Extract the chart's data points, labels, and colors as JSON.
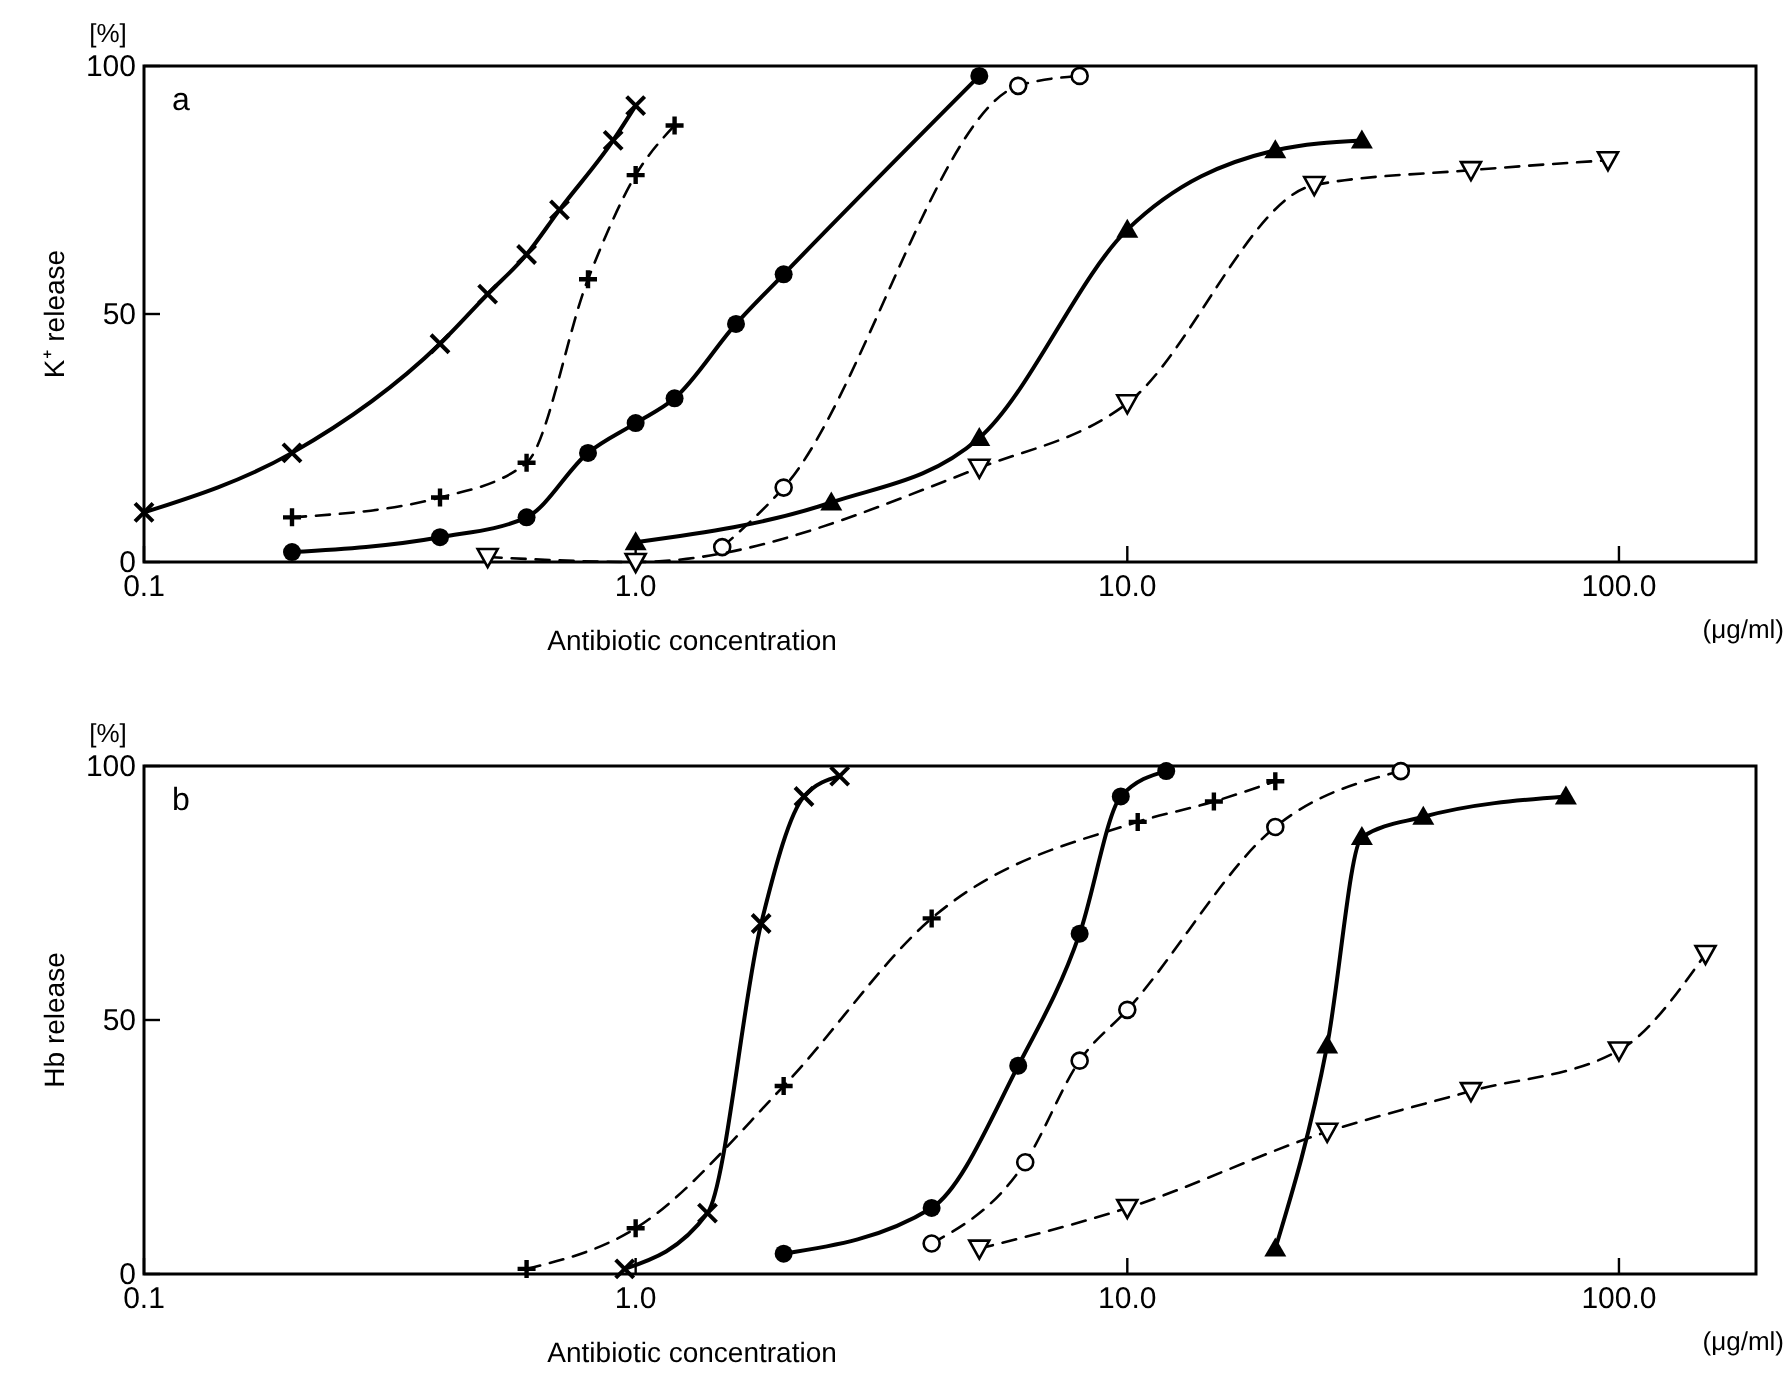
{
  "chart_data": [
    {
      "type": "line",
      "xlabel": "Antibiotic concentration",
      "ylabel": "K⁺ release",
      "annotations": [
        "a",
        "[%]",
        "(μg/ml)"
      ],
      "log": "x",
      "xlim": [
        0.1,
        190
      ],
      "xticks": [
        {
          "value": 0.1,
          "label": "0.1"
        },
        {
          "value": 1,
          "label": "1.0"
        },
        {
          "value": 10,
          "label": "10.0"
        },
        {
          "value": 100,
          "label": "100.0"
        }
      ],
      "ylim": [
        0,
        100
      ],
      "yticks": [
        0,
        50,
        100
      ],
      "grid": false,
      "series": [
        {
          "color": "#000000",
          "marker": "x",
          "line_style": "solid",
          "x": [
            0.1,
            0.2,
            0.4,
            0.5,
            0.6,
            0.7,
            0.9,
            1.0
          ],
          "values": [
            10,
            22,
            44,
            54,
            62,
            71,
            85,
            92
          ]
        },
        {
          "color": "#000000",
          "marker": "cross",
          "line_style": "dashed",
          "x": [
            0.2,
            0.4,
            0.6,
            0.8,
            1.0,
            1.2
          ],
          "values": [
            9,
            13,
            20,
            57,
            78,
            88
          ]
        },
        {
          "color": "#000000",
          "marker": "circle",
          "line_style": "solid",
          "x": [
            0.2,
            0.4,
            0.6,
            0.8,
            1.0,
            1.2,
            1.6,
            2.0,
            5.0
          ],
          "values": [
            2,
            5,
            9,
            22,
            28,
            33,
            48,
            58,
            98
          ]
        },
        {
          "color": "#000000",
          "marker": "circle-open",
          "line_style": "dashed",
          "x": [
            1.5,
            2.0,
            6.0,
            8.0
          ],
          "values": [
            3,
            15,
            96,
            98
          ]
        },
        {
          "color": "#000000",
          "marker": "triangle",
          "line_style": "solid",
          "x": [
            1.0,
            2.5,
            5.0,
            10,
            20,
            30
          ],
          "values": [
            4,
            12,
            25,
            67,
            83,
            85
          ]
        },
        {
          "color": "#000000",
          "marker": "triangle-down-open",
          "line_style": "dashed",
          "x": [
            0.5,
            1.0,
            5.0,
            10,
            24,
            50,
            95
          ],
          "values": [
            1,
            0,
            19,
            32,
            76,
            79,
            81
          ]
        }
      ]
    },
    {
      "type": "line",
      "xlabel": "Antibiotic concentration",
      "ylabel": "Hb release",
      "annotations": [
        "b",
        "[%]",
        "(μg/ml)"
      ],
      "log": "x",
      "xlim": [
        0.1,
        190
      ],
      "xticks": [
        {
          "value": 0.1,
          "label": "0.1"
        },
        {
          "value": 1,
          "label": "1.0"
        },
        {
          "value": 10,
          "label": "10.0"
        },
        {
          "value": 100,
          "label": "100.0"
        }
      ],
      "ylim": [
        0,
        100
      ],
      "yticks": [
        0,
        50,
        100
      ],
      "grid": false,
      "series": [
        {
          "color": "#000000",
          "marker": "x",
          "line_style": "solid",
          "x": [
            0.95,
            1.4,
            1.8,
            2.2,
            2.6
          ],
          "values": [
            1,
            12,
            69,
            94,
            98
          ]
        },
        {
          "color": "#000000",
          "marker": "cross",
          "line_style": "dashed",
          "x": [
            0.6,
            1.0,
            2.0,
            4.0,
            10.5,
            15,
            20
          ],
          "values": [
            1,
            9,
            37,
            70,
            89,
            93,
            97
          ]
        },
        {
          "color": "#000000",
          "marker": "circle",
          "line_style": "solid",
          "x": [
            2.0,
            4.0,
            6.0,
            8.0,
            9.7,
            12
          ],
          "values": [
            4,
            13,
            41,
            67,
            94,
            99
          ]
        },
        {
          "color": "#000000",
          "marker": "circle-open",
          "line_style": "dashed",
          "x": [
            4.0,
            6.2,
            8.0,
            10,
            20,
            36
          ],
          "values": [
            6,
            22,
            42,
            52,
            88,
            99
          ]
        },
        {
          "color": "#000000",
          "marker": "triangle",
          "line_style": "solid",
          "x": [
            20,
            25.5,
            30,
            40,
            78
          ],
          "values": [
            5,
            45,
            86,
            90,
            94
          ]
        },
        {
          "color": "#000000",
          "marker": "triangle-down-open",
          "line_style": "dashed",
          "x": [
            5,
            10,
            25.5,
            50,
            100,
            150
          ],
          "values": [
            5,
            13,
            28,
            36,
            44,
            63
          ]
        }
      ]
    }
  ]
}
